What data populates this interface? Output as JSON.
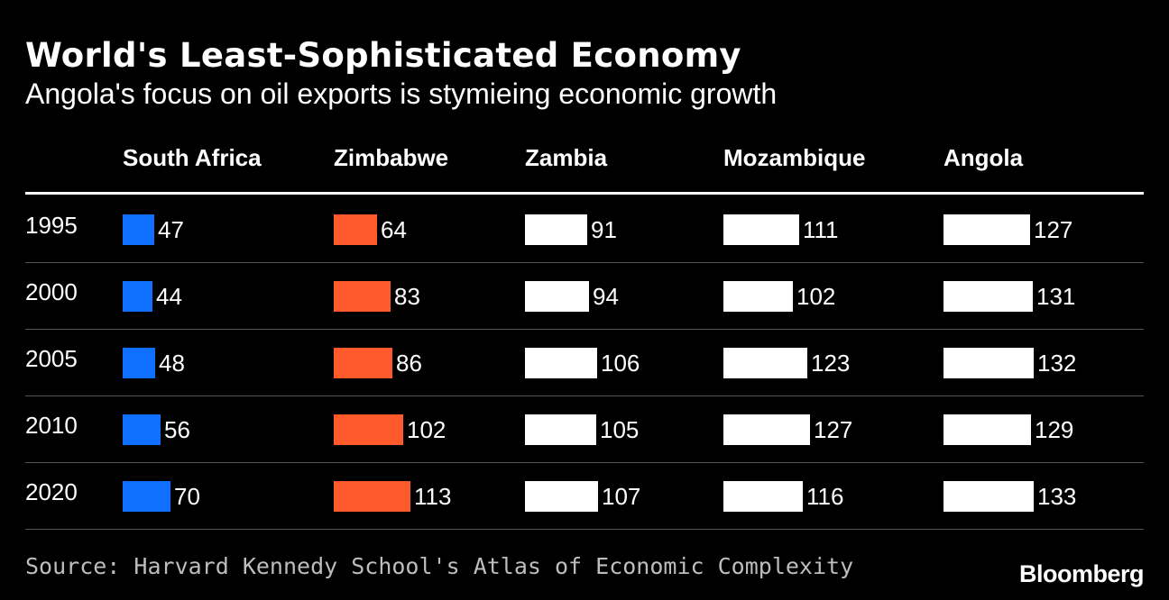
{
  "header": {
    "title": "World's Least-Sophisticated Economy",
    "subtitle": "Angola's focus on oil exports is stymieing economic growth"
  },
  "footer": {
    "source": "Source: Harvard Kennedy School's Atlas of Economic Complexity",
    "logo": "Bloomberg"
  },
  "chart_data": {
    "type": "bar",
    "title": "World's Least-Sophisticated Economy",
    "subtitle": "Angola's focus on oil exports is stymieing economic growth",
    "categories": [
      "1995",
      "2000",
      "2005",
      "2010",
      "2020"
    ],
    "series": [
      {
        "name": "South Africa",
        "color": "#0F6FFF",
        "values": [
          47,
          44,
          48,
          56,
          70
        ]
      },
      {
        "name": "Zimbabwe",
        "color": "#FF5A2C",
        "values": [
          64,
          83,
          86,
          102,
          113
        ]
      },
      {
        "name": "Zambia",
        "color": "#FFFFFF",
        "values": [
          91,
          94,
          106,
          105,
          107
        ]
      },
      {
        "name": "Mozambique",
        "color": "#FFFFFF",
        "values": [
          111,
          102,
          123,
          127,
          116
        ]
      },
      {
        "name": "Angola",
        "color": "#FFFFFF",
        "values": [
          127,
          131,
          132,
          129,
          133
        ]
      }
    ],
    "grid": false,
    "legend": "none"
  }
}
